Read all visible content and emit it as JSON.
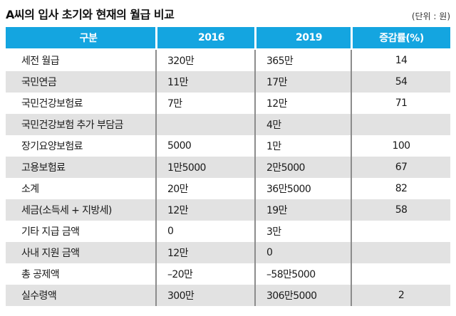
{
  "title": "A씨의 입사 초기와 현재의 월급 비교",
  "unit_label": "(단위 : 원)",
  "colors": {
    "header_bg": "#14a5e0",
    "stripe_bg": "#e2e2e2",
    "divider": "#8c8c8c",
    "header_text": "#ffffff",
    "body_text": "#1a1a1a"
  },
  "chart_data": {
    "type": "table",
    "title": "A씨의 입사 초기와 현재의 월급 비교",
    "unit": "원",
    "columns": [
      "구분",
      "2016",
      "2019",
      "증감률(%)"
    ],
    "rows": [
      {
        "label": "세전 월급",
        "y2016": "320만",
        "y2019": "365만",
        "rate": "14"
      },
      {
        "label": "국민연금",
        "y2016": "11만",
        "y2019": "17만",
        "rate": "54"
      },
      {
        "label": "국민건강보험료",
        "y2016": "7만",
        "y2019": "12만",
        "rate": "71"
      },
      {
        "label": "국민건강보험 추가 부담금",
        "y2016": "",
        "y2019": "4만",
        "rate": ""
      },
      {
        "label": "장기요양보험료",
        "y2016": "5000",
        "y2019": "1만",
        "rate": "100"
      },
      {
        "label": "고용보험료",
        "y2016": "1만5000",
        "y2019": "2만5000",
        "rate": "67"
      },
      {
        "label": "소계",
        "y2016": "20만",
        "y2019": "36만5000",
        "rate": "82"
      },
      {
        "label": "세금(소득세 + 지방세)",
        "y2016": "12만",
        "y2019": "19만",
        "rate": "58"
      },
      {
        "label": "기타 지급 금액",
        "y2016": "0",
        "y2019": "3만",
        "rate": ""
      },
      {
        "label": "사내 지원 금액",
        "y2016": "12만",
        "y2019": "0",
        "rate": ""
      },
      {
        "label": "총 공제액",
        "y2016": "–20만",
        "y2019": "–58만5000",
        "rate": ""
      },
      {
        "label": "실수령액",
        "y2016": "300만",
        "y2019": "306만5000",
        "rate": "2"
      }
    ]
  }
}
